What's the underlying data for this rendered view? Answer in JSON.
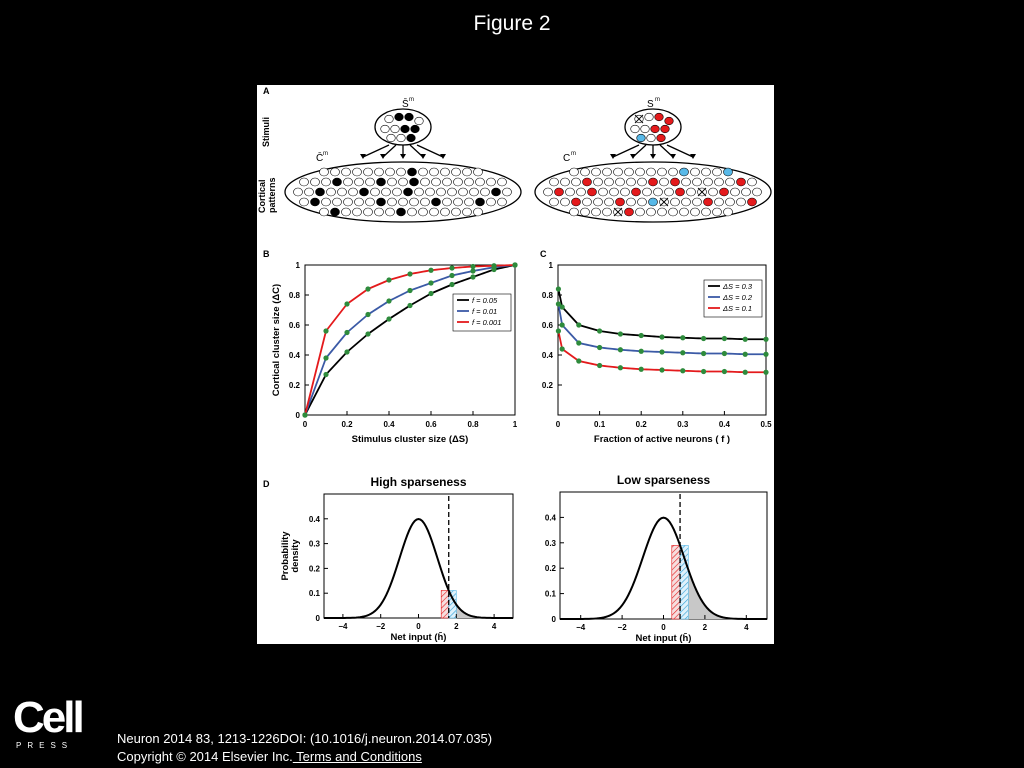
{
  "page": {
    "title": "Figure 2"
  },
  "panel_a": {
    "label": "A",
    "row_stimuli": "Stimuli",
    "row_cortical_1": "Cortical",
    "row_cortical_2": "patterns",
    "left_stim_symbol": "S̄",
    "left_ctx_symbol": "C̄",
    "right_stim_symbol": "S",
    "right_ctx_symbol": "C",
    "superscript": "m",
    "colors": {
      "black": "#000000",
      "red": "#e41a1c",
      "cyan": "#58b9e8"
    }
  },
  "chart_data": [
    {
      "panel": "B",
      "type": "line",
      "xlabel": "Stimulus cluster size (ΔS)",
      "ylabel": "Cortical cluster size (ΔC)",
      "xlim": [
        0,
        1
      ],
      "ylim": [
        0,
        1
      ],
      "xticks": [
        "0",
        "0.2",
        "0.4",
        "0.6",
        "0.8",
        "1"
      ],
      "yticks": [
        "0",
        "0.2",
        "0.4",
        "0.6",
        "0.8",
        "1"
      ],
      "legend_position": "right",
      "series": [
        {
          "name": "f = 0.05",
          "label_prefix": "f",
          "label_value": "= 0.05",
          "color": "#000000",
          "x": [
            0,
            0.1,
            0.2,
            0.3,
            0.4,
            0.5,
            0.6,
            0.7,
            0.8,
            0.9,
            1.0
          ],
          "y": [
            0,
            0.27,
            0.42,
            0.54,
            0.64,
            0.73,
            0.81,
            0.87,
            0.92,
            0.97,
            1.0
          ]
        },
        {
          "name": "f = 0.01",
          "label_prefix": "f",
          "label_value": "= 0.01",
          "color": "#3b5aa6",
          "x": [
            0,
            0.1,
            0.2,
            0.3,
            0.4,
            0.5,
            0.6,
            0.7,
            0.8,
            0.9,
            1.0
          ],
          "y": [
            0,
            0.38,
            0.55,
            0.67,
            0.76,
            0.83,
            0.88,
            0.93,
            0.96,
            0.985,
            1.0
          ]
        },
        {
          "name": "f = 0.001",
          "label_prefix": "f",
          "label_value": "= 0.001",
          "color": "#e41a1c",
          "x": [
            0,
            0.1,
            0.2,
            0.3,
            0.4,
            0.5,
            0.6,
            0.7,
            0.8,
            0.9,
            1.0
          ],
          "y": [
            0,
            0.56,
            0.74,
            0.84,
            0.9,
            0.94,
            0.965,
            0.98,
            0.99,
            0.995,
            1.0
          ]
        }
      ],
      "marker_color": "#2e8b3c"
    },
    {
      "panel": "C",
      "type": "line",
      "xlabel": "Fraction of active neurons ( f )",
      "ylabel": "",
      "xlim": [
        0,
        0.5
      ],
      "ylim": [
        0,
        1
      ],
      "xticks": [
        "0",
        "0.1",
        "0.2",
        "0.3",
        "0.4",
        "0.5"
      ],
      "yticks": [
        "0.2",
        "0.4",
        "0.6",
        "0.8",
        "1"
      ],
      "legend_position": "top-right",
      "series": [
        {
          "name": "ΔS = 0.3",
          "label_prefix": "ΔS",
          "label_value": "= 0.3",
          "color": "#000000",
          "x": [
            0.001,
            0.01,
            0.05,
            0.1,
            0.15,
            0.2,
            0.25,
            0.3,
            0.35,
            0.4,
            0.45,
            0.5
          ],
          "y": [
            0.84,
            0.72,
            0.6,
            0.56,
            0.54,
            0.53,
            0.52,
            0.515,
            0.51,
            0.51,
            0.505,
            0.505
          ]
        },
        {
          "name": "ΔS = 0.2",
          "label_prefix": "ΔS",
          "label_value": "= 0.2",
          "color": "#3b5aa6",
          "x": [
            0.001,
            0.01,
            0.05,
            0.1,
            0.15,
            0.2,
            0.25,
            0.3,
            0.35,
            0.4,
            0.45,
            0.5
          ],
          "y": [
            0.74,
            0.6,
            0.48,
            0.45,
            0.435,
            0.425,
            0.42,
            0.415,
            0.41,
            0.41,
            0.405,
            0.405
          ]
        },
        {
          "name": "ΔS = 0.1",
          "label_prefix": "ΔS",
          "label_value": "= 0.1",
          "color": "#e41a1c",
          "x": [
            0.001,
            0.01,
            0.05,
            0.1,
            0.15,
            0.2,
            0.25,
            0.3,
            0.35,
            0.4,
            0.45,
            0.5
          ],
          "y": [
            0.56,
            0.44,
            0.36,
            0.33,
            0.315,
            0.305,
            0.3,
            0.295,
            0.29,
            0.29,
            0.285,
            0.285
          ]
        }
      ],
      "marker_color": "#2e8b3c"
    },
    {
      "panel": "D-left",
      "type": "area",
      "title": "High sparseness",
      "xlabel": "Net input (h̄)",
      "ylabel": "Probability density",
      "xlim": [
        -5,
        5
      ],
      "ylim": [
        0,
        0.5
      ],
      "xticks": [
        "−4",
        "−2",
        "0",
        "2",
        "4"
      ],
      "yticks": [
        "0",
        "0.1",
        "0.2",
        "0.3",
        "0.4"
      ],
      "curve": {
        "type": "normal",
        "mean": 0,
        "sd": 1
      },
      "threshold": 1.6,
      "hatched_red": [
        1.2,
        1.6
      ],
      "hatched_cyan": [
        1.6,
        2.0
      ]
    },
    {
      "panel": "D-right",
      "type": "area",
      "title": "Low sparseness",
      "xlabel": "Net input (h̄)",
      "ylabel": "",
      "xlim": [
        -5,
        5
      ],
      "ylim": [
        0,
        0.5
      ],
      "xticks": [
        "−4",
        "−2",
        "0",
        "2",
        "4"
      ],
      "yticks": [
        "0",
        "0.1",
        "0.2",
        "0.3",
        "0.4"
      ],
      "curve": {
        "type": "normal",
        "mean": 0,
        "sd": 1
      },
      "threshold": 0.8,
      "hatched_red": [
        0.4,
        0.8
      ],
      "hatched_cyan": [
        0.8,
        1.2
      ]
    }
  ],
  "panel_labels": {
    "b": "B",
    "c": "C",
    "d": "D"
  },
  "footer": {
    "logo": "Cell",
    "logo_sub": "PRESS",
    "citation_line1": "Neuron 2014 83, 1213-1226DOI: (10.1016/j.neuron.2014.07.035)",
    "copyright": "Copyright © 2014 Elsevier Inc.",
    "terms_link": " Terms and Conditions"
  }
}
